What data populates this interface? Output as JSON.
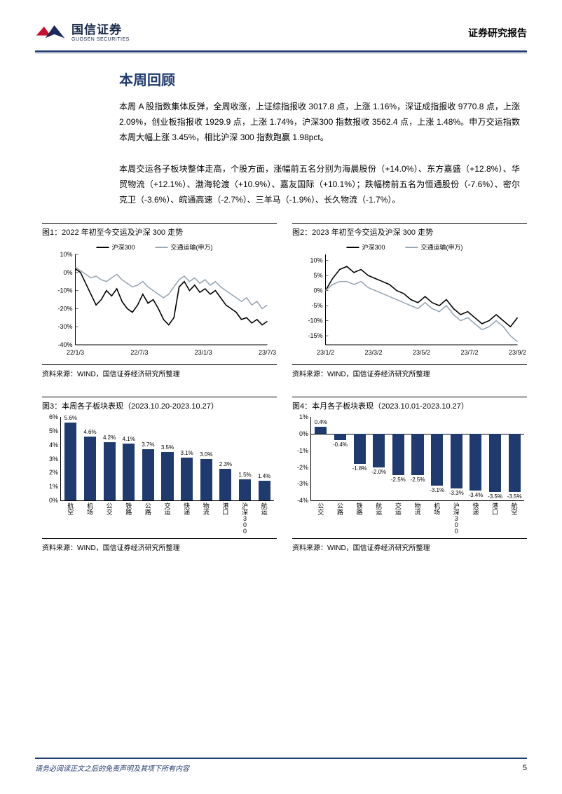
{
  "header": {
    "brand_cn": "国信证券",
    "brand_en": "GUOSEN SECURITIES",
    "report_type": "证券研究报告",
    "logo_colors": {
      "red": "#c8102e",
      "blue": "#1a2a5c"
    }
  },
  "section_title": "本周回顾",
  "paragraphs": {
    "p1": "本周 A 股指数集体反弹，全周收涨，上证综指报收 3017.8 点，上涨 1.16%，深证成指报收 9770.8 点，上涨 2.09%，创业板指报收 1929.9 点，上涨 1.74%，沪深300 指数报收 3562.4 点，上涨 1.48%。申万交运指数本周大幅上涨 3.45%，相比沪深 300 指数跑赢 1.98pct。",
    "p2": "本周交运各子板块整体走高，个股方面，涨幅前五名分别为海晨股份（+14.0%）、东方嘉盛（+12.8%）、华贸物流（+12.1%）、渤海轮渡（+10.9%）、嘉友国际（+10.1%）；跌幅榜前五名为恒通股份（-7.6%）、密尔克卫（-3.6%）、皖通高速（-2.7%）、三羊马（-1.9%）、长久物流（-1.7%）。"
  },
  "charts": {
    "c1": {
      "caption": "图1：2022 年初至今交运及沪深 300 走势",
      "source": "资料来源：WIND，国信证券经济研究所整理",
      "legend": [
        {
          "label": "沪深300",
          "color": "#000000"
        },
        {
          "label": "交通运输(申万)",
          "color": "#9aa7b3"
        }
      ],
      "y_ticks": [
        10,
        0,
        -10,
        -20,
        -30,
        -40
      ],
      "x_ticks": [
        "22/1/3",
        "22/7/3",
        "23/1/3",
        "23/7/3"
      ],
      "ylim": [
        -40,
        10
      ],
      "series": {
        "hs300": {
          "color": "#000000",
          "stroke_width": 1.6,
          "points": [
            2,
            0,
            -6,
            -12,
            -18,
            -15,
            -10,
            -13,
            -9,
            -16,
            -20,
            -22,
            -18,
            -12,
            -17,
            -15,
            -20,
            -26,
            -29,
            -25,
            -8,
            -5,
            -10,
            -7,
            -11,
            -9,
            -12,
            -10,
            -14,
            -18,
            -20,
            -22,
            -26,
            -25,
            -28,
            -26,
            -29,
            -27
          ]
        },
        "trans": {
          "color": "#9aa7b3",
          "stroke_width": 1.6,
          "points": [
            3,
            1,
            -1,
            -3,
            -2,
            -4,
            -5,
            -3,
            -1,
            -4,
            -6,
            -8,
            -7,
            -5,
            -8,
            -10,
            -12,
            -14,
            -12,
            -8,
            -4,
            -2,
            -5,
            -3,
            -6,
            -4,
            -7,
            -5,
            -8,
            -10,
            -12,
            -14,
            -16,
            -14,
            -18,
            -16,
            -20,
            -18
          ]
        }
      }
    },
    "c2": {
      "caption": "图2：2023 年初至今交运及沪深 300 走势",
      "source": "资料来源：WIND，国信证券经济研究所整理",
      "legend": [
        {
          "label": "沪深300",
          "color": "#000000"
        },
        {
          "label": "交通运输(申万)",
          "color": "#9aa7b3"
        }
      ],
      "y_ticks": [
        10,
        5,
        0,
        -5,
        -10,
        -15
      ],
      "x_ticks": [
        "23/1/2",
        "23/3/2",
        "23/5/2",
        "23/7/2",
        "23/9/2"
      ],
      "ylim": [
        -18,
        12
      ],
      "series": {
        "hs300": {
          "color": "#000000",
          "stroke_width": 1.6,
          "points": [
            0,
            4,
            7,
            8,
            6,
            7,
            5,
            4,
            3,
            2,
            0,
            -1,
            -3,
            -4,
            -2,
            -4,
            -5,
            -3,
            -6,
            -8,
            -7,
            -9,
            -11,
            -10,
            -8,
            -10,
            -12,
            -9
          ]
        },
        "trans": {
          "color": "#9aa7b3",
          "stroke_width": 1.6,
          "points": [
            0,
            2,
            3,
            3,
            2,
            3,
            1,
            0,
            -1,
            -2,
            -3,
            -4,
            -5,
            -6,
            -4,
            -6,
            -7,
            -5,
            -8,
            -10,
            -9,
            -11,
            -13,
            -12,
            -10,
            -12,
            -15,
            -17
          ]
        }
      }
    },
    "c3": {
      "caption": "图3：本周各子板块表现（2023.10.20-2023.10.27）",
      "source": "资料来源：WIND，国信证券经济研究所整理",
      "ylim": [
        0,
        6
      ],
      "y_ticks": [
        6,
        5,
        4,
        3,
        2,
        1,
        0
      ],
      "y_suffix": "%",
      "bar_color": "#1f3a6e",
      "categories": [
        "航空",
        "机场",
        "公交",
        "铁路",
        "公路",
        "交运",
        "快递",
        "物流",
        "港口",
        "沪深300",
        "航运"
      ],
      "values": [
        5.6,
        4.6,
        4.2,
        4.1,
        3.7,
        3.5,
        3.1,
        3.0,
        2.3,
        1.5,
        1.4
      ],
      "value_labels": [
        "5.6%",
        "4.6%",
        "4.2%",
        "4.1%",
        "3.7%",
        "3.5%",
        "3.1%",
        "3.0%",
        "2.3%",
        "1.5%",
        "1.4%"
      ]
    },
    "c4": {
      "caption": "图4：本月各子板块表现（2023.10.01-2023.10.27）",
      "source": "资料来源：WIND，国信证券经济研究所整理",
      "ylim": [
        -4,
        1
      ],
      "y_ticks": [
        1,
        0,
        -1,
        -2,
        -3,
        -4
      ],
      "y_suffix": "%",
      "bar_color": "#1f3a6e",
      "categories": [
        "公交",
        "公路",
        "铁路",
        "航运",
        "交运",
        "物流",
        "机场",
        "沪深300",
        "快递",
        "港口",
        "航空"
      ],
      "values": [
        0.4,
        -0.4,
        -1.8,
        -2.0,
        -2.5,
        -2.5,
        -3.1,
        -3.3,
        -3.4,
        -3.5,
        -3.5
      ],
      "value_labels": [
        "0.4%",
        "-0.4%",
        "-1.8%",
        "-2.0%",
        "-2.5%",
        "-2.5%",
        "-3.1%",
        "-3.3%",
        "-3.4%",
        "-3.5%",
        "-3.5%"
      ]
    }
  },
  "footer": {
    "note": "请务必阅读正文之后的免责声明及其项下所有内容",
    "page": "5"
  },
  "colors": {
    "primary": "#1f3a6e",
    "text": "#000000",
    "grid": "#cccccc"
  }
}
